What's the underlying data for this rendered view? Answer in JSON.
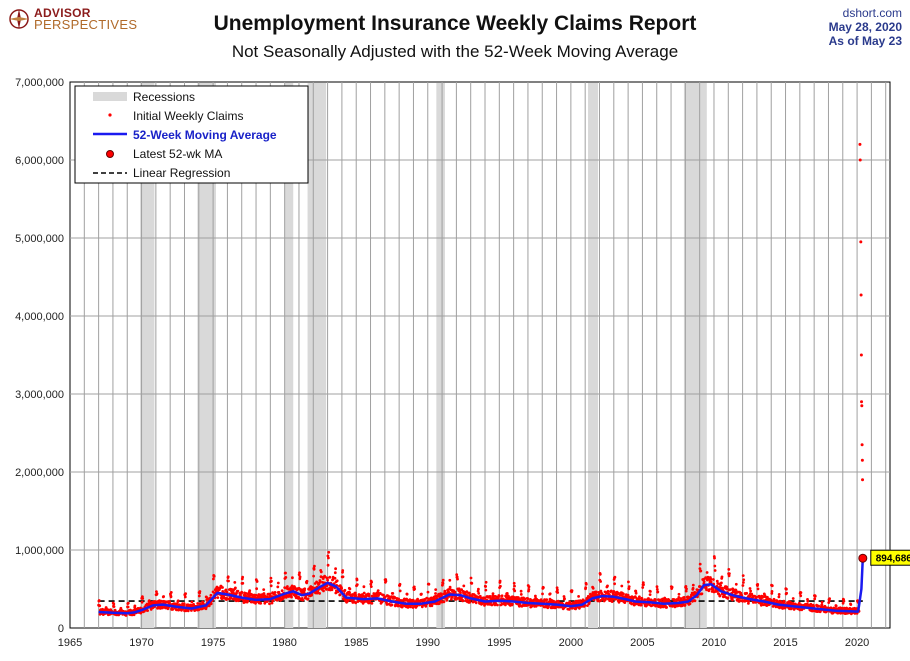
{
  "header": {
    "logo_top": "ADVISOR",
    "logo_bottom": "PERSPECTIVES",
    "title": "Unemployment Insurance Weekly Claims Report",
    "subtitle": "Not Seasonally Adjusted with the 52-Week Moving Average",
    "source_site": "dshort.com",
    "source_date": "May 28, 2020",
    "source_asof": "As of May 23"
  },
  "colors": {
    "recession": "#d9d9d9",
    "claims": "#ff0000",
    "moving_average": "#1a1af0",
    "latest_marker": "#ff0000",
    "regression": "#000000",
    "latest_label_bg": "#ffff00"
  },
  "chart_data": {
    "type": "line",
    "title": "Unemployment Insurance Weekly Claims Report",
    "subtitle": "Not Seasonally Adjusted with the 52-Week Moving Average",
    "xlim": [
      1965,
      2022.3
    ],
    "ylim": [
      0,
      7000000
    ],
    "x_ticks": [
      1965,
      1970,
      1975,
      1980,
      1985,
      1990,
      1995,
      2000,
      2005,
      2010,
      2015,
      2020
    ],
    "y_ticks": [
      0,
      1000000,
      2000000,
      3000000,
      4000000,
      5000000,
      6000000,
      7000000
    ],
    "y_tick_labels": [
      "0",
      "1,000,000",
      "2,000,000",
      "3,000,000",
      "4,000,000",
      "5,000,000",
      "6,000,000",
      "7,000,000"
    ],
    "grid": true,
    "legend_position": "top-left",
    "legend": [
      "Recessions",
      "Initial Weekly Claims",
      "52-Week Moving Average",
      "Latest 52-wk MA",
      "Linear Regression"
    ],
    "recessions": [
      [
        1969.9,
        1970.9
      ],
      [
        1973.9,
        1975.2
      ],
      [
        1980.0,
        1980.6
      ],
      [
        1981.6,
        1982.9
      ],
      [
        1990.6,
        1991.2
      ],
      [
        2001.2,
        2001.9
      ],
      [
        2007.9,
        2009.5
      ]
    ],
    "moving_average": {
      "name": "52-Week Moving Average",
      "x": [
        1967.0,
        1968.0,
        1969.0,
        1969.5,
        1970.0,
        1970.8,
        1971.5,
        1972.5,
        1973.5,
        1974.5,
        1975.3,
        1976.0,
        1977.0,
        1978.0,
        1979.0,
        1980.0,
        1980.6,
        1981.2,
        1981.7,
        1982.5,
        1983.0,
        1983.6,
        1984.3,
        1985.5,
        1986.5,
        1987.5,
        1988.5,
        1989.5,
        1990.5,
        1991.5,
        1992.3,
        1993.0,
        1994.0,
        1995.0,
        1996.0,
        1997.0,
        1998.0,
        1999.0,
        2000.0,
        2000.8,
        2001.5,
        2002.2,
        2003.0,
        2003.8,
        2004.5,
        2005.5,
        2006.5,
        2007.5,
        2008.2,
        2008.8,
        2009.3,
        2009.8,
        2010.5,
        2011.5,
        2012.5,
        2013.5,
        2014.5,
        2015.5,
        2016.5,
        2017.5,
        2018.5,
        2019.5,
        2020.05,
        2020.1,
        2020.3,
        2020.4
      ],
      "y": [
        205000,
        195000,
        190000,
        200000,
        230000,
        290000,
        300000,
        270000,
        250000,
        290000,
        450000,
        430000,
        390000,
        360000,
        370000,
        440000,
        470000,
        420000,
        440000,
        530000,
        580000,
        530000,
        390000,
        370000,
        380000,
        340000,
        310000,
        310000,
        340000,
        430000,
        420000,
        380000,
        340000,
        350000,
        340000,
        320000,
        310000,
        300000,
        280000,
        300000,
        380000,
        410000,
        400000,
        370000,
        340000,
        330000,
        310000,
        320000,
        340000,
        420000,
        550000,
        560000,
        470000,
        410000,
        370000,
        340000,
        300000,
        280000,
        260000,
        240000,
        220000,
        215000,
        210000,
        240000,
        500000,
        894686
      ]
    },
    "claims_outliers_2020": {
      "x": [
        2020.2,
        2020.22,
        2020.26,
        2020.28,
        2020.3,
        2020.31,
        2020.33,
        2020.35,
        2020.37,
        2020.38
      ],
      "y": [
        6200000,
        6000000,
        4950000,
        4270000,
        3500000,
        2900000,
        2850000,
        2350000,
        2150000,
        1900000
      ]
    },
    "latest": {
      "name": "Latest 52-wk MA",
      "x": 2020.4,
      "y": 894686,
      "label": "894,686"
    },
    "linear_regression": {
      "name": "Linear Regression",
      "x": [
        1967.0,
        2020.4
      ],
      "y": [
        345000,
        345000
      ]
    }
  }
}
